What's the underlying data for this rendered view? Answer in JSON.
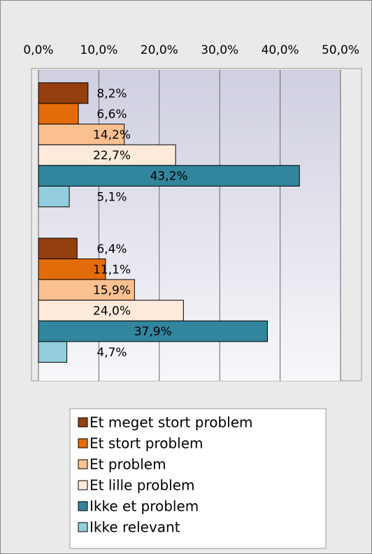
{
  "chart_data": {
    "type": "bar",
    "orientation": "horizontal",
    "categories": [
      null,
      null
    ],
    "series": [
      {
        "name": "Et meget stort problem",
        "color": "#953f10",
        "values": [
          8.2,
          6.4
        ],
        "value_labels": [
          "8,2%",
          "6,4%"
        ]
      },
      {
        "name": "Et stort problem",
        "color": "#e36c0a",
        "values": [
          6.6,
          11.1
        ],
        "value_labels": [
          "6,6%",
          "11,1%"
        ]
      },
      {
        "name": "Et problem",
        "color": "#fac090",
        "values": [
          14.2,
          15.9
        ],
        "value_labels": [
          "14,2%",
          "15,9%"
        ]
      },
      {
        "name": "Et lille problem",
        "color": "#fdeada",
        "values": [
          22.7,
          24.0
        ],
        "value_labels": [
          "22,7%",
          "24,0%"
        ]
      },
      {
        "name": "Ikke et problem",
        "color": "#31859c",
        "values": [
          43.2,
          37.9
        ],
        "value_labels": [
          "43,2%",
          "37,9%"
        ]
      },
      {
        "name": "Ikke relevant",
        "color": "#93cddd",
        "values": [
          5.1,
          4.7
        ],
        "value_labels": [
          "5,1%",
          "4,7%"
        ]
      }
    ],
    "xlim": [
      0,
      50
    ],
    "xticks": [
      {
        "value": 0,
        "label": "0,0%"
      },
      {
        "value": 10,
        "label": "10,0%"
      },
      {
        "value": 20,
        "label": "20,0%"
      },
      {
        "value": 30,
        "label": "30,0%"
      },
      {
        "value": 40,
        "label": "40,0%"
      },
      {
        "value": 50,
        "label": "50,0%"
      }
    ],
    "grid": true,
    "legend": "bottom"
  }
}
